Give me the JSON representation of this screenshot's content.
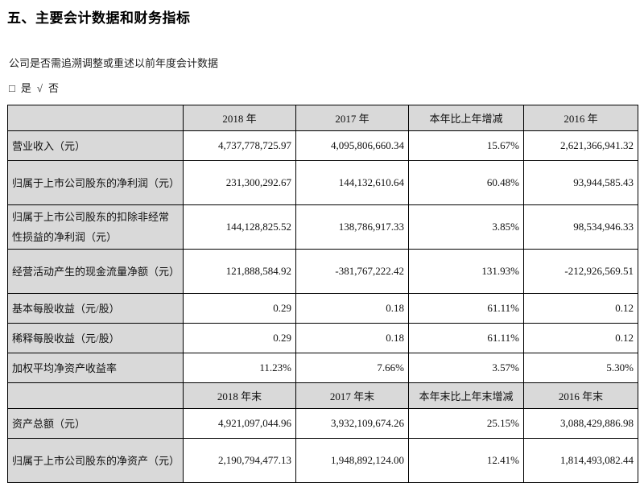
{
  "page": {
    "title": "五、主要会计数据和财务指标",
    "restate_question": "公司是否需追溯调整或重述以前年度会计数据",
    "checkbox_unchecked": "□",
    "option_yes": "是",
    "checkmark": "√",
    "option_no": "否"
  },
  "table": {
    "annual_header": {
      "col_2018": "2018 年",
      "col_2017": "2017 年",
      "col_change": "本年比上年增减",
      "col_2016": "2016 年"
    },
    "annual_rows": [
      {
        "label": "营业收入（元）",
        "y2018": "4,737,778,725.97",
        "y2017": "4,095,806,660.34",
        "change": "15.67%",
        "y2016": "2,621,366,941.32"
      },
      {
        "label": "归属于上市公司股东的净利润（元）",
        "y2018": "231,300,292.67",
        "y2017": "144,132,610.64",
        "change": "60.48%",
        "y2016": "93,944,585.43"
      },
      {
        "label": "归属于上市公司股东的扣除非经常性损益的净利润（元）",
        "y2018": "144,128,825.52",
        "y2017": "138,786,917.33",
        "change": "3.85%",
        "y2016": "98,534,946.33"
      },
      {
        "label": "经营活动产生的现金流量净额（元）",
        "y2018": "121,888,584.92",
        "y2017": "-381,767,222.42",
        "change": "131.93%",
        "y2016": "-212,926,569.51"
      },
      {
        "label": "基本每股收益（元/股）",
        "y2018": "0.29",
        "y2017": "0.18",
        "change": "61.11%",
        "y2016": "0.12"
      },
      {
        "label": "稀释每股收益（元/股）",
        "y2018": "0.29",
        "y2017": "0.18",
        "change": "61.11%",
        "y2016": "0.12"
      },
      {
        "label": "加权平均净资产收益率",
        "y2018": "11.23%",
        "y2017": "7.66%",
        "change": "3.57%",
        "y2016": "5.30%"
      }
    ],
    "yearend_header": {
      "col_2018": "2018 年末",
      "col_2017": "2017 年末",
      "col_change": "本年末比上年末增减",
      "col_2016": "2016 年末"
    },
    "yearend_rows": [
      {
        "label": "资产总额（元）",
        "y2018": "4,921,097,044.96",
        "y2017": "3,932,109,674.26",
        "change": "25.15%",
        "y2016": "3,088,429,886.98"
      },
      {
        "label": "归属于上市公司股东的净资产（元）",
        "y2018": "2,190,794,477.13",
        "y2017": "1,948,892,124.00",
        "change": "12.41%",
        "y2016": "1,814,493,082.44"
      }
    ]
  }
}
